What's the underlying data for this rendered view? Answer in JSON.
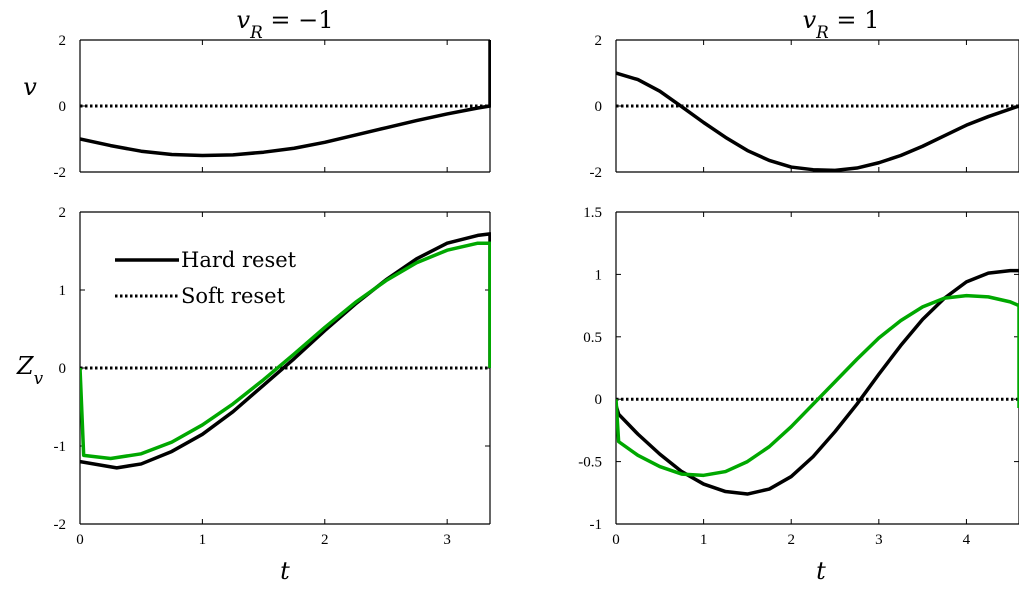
{
  "colors": {
    "hard": "#000000",
    "soft": "#00a800",
    "axis": "#000000"
  },
  "chart_data": [
    {
      "id": "top-left",
      "type": "line",
      "title": "v_R = −1",
      "xlabel": "",
      "ylabel": "v",
      "xlim": [
        0,
        3.35
      ],
      "ylim": [
        -2,
        2
      ],
      "xticks": [
        0,
        1,
        2,
        3
      ],
      "xtick_labels": [
        "",
        "",
        "",
        ""
      ],
      "yticks": [
        -2,
        0,
        2
      ],
      "ytick_labels": [
        "-2",
        "0",
        "2"
      ],
      "series": [
        {
          "style": "solid",
          "color": "#000000",
          "x": [
            0,
            0.25,
            0.5,
            0.75,
            1.0,
            1.25,
            1.5,
            1.75,
            2.0,
            2.25,
            2.5,
            2.75,
            3.0,
            3.25,
            3.35,
            3.35
          ],
          "y": [
            -1.0,
            -1.2,
            -1.37,
            -1.47,
            -1.5,
            -1.48,
            -1.4,
            -1.28,
            -1.1,
            -0.88,
            -0.66,
            -0.44,
            -0.24,
            -0.06,
            0.0,
            2.0
          ]
        },
        {
          "style": "dotted",
          "color": "#000000",
          "x": [
            0,
            3.35
          ],
          "y": [
            0,
            0
          ]
        }
      ]
    },
    {
      "id": "top-right",
      "type": "line",
      "title": "v_R = 1",
      "xlabel": "",
      "ylabel": "",
      "xlim": [
        0,
        4.6
      ],
      "ylim": [
        -2,
        2
      ],
      "xticks": [
        0,
        1,
        2,
        3,
        4
      ],
      "xtick_labels": [
        "",
        "",
        "",
        "",
        ""
      ],
      "yticks": [
        -2,
        0,
        2
      ],
      "ytick_labels": [
        "-2",
        "0",
        "2"
      ],
      "series": [
        {
          "style": "solid",
          "color": "#000000",
          "x": [
            0,
            0.25,
            0.5,
            0.75,
            1.0,
            1.25,
            1.5,
            1.75,
            2.0,
            2.25,
            2.5,
            2.75,
            3.0,
            3.25,
            3.5,
            3.75,
            4.0,
            4.25,
            4.6
          ],
          "y": [
            1.0,
            0.8,
            0.45,
            -0.02,
            -0.5,
            -0.95,
            -1.35,
            -1.65,
            -1.85,
            -1.93,
            -1.95,
            -1.88,
            -1.72,
            -1.5,
            -1.22,
            -0.9,
            -0.58,
            -0.32,
            0.0
          ]
        },
        {
          "style": "dotted",
          "color": "#000000",
          "x": [
            0,
            4.6
          ],
          "y": [
            0,
            0
          ]
        }
      ]
    },
    {
      "id": "bottom-left",
      "type": "line",
      "title": "",
      "xlabel": "t",
      "ylabel": "Z_v",
      "xlim": [
        0,
        3.35
      ],
      "ylim": [
        -2,
        2
      ],
      "xticks": [
        0,
        1,
        2,
        3
      ],
      "xtick_labels": [
        "0",
        "1",
        "2",
        "3"
      ],
      "yticks": [
        -2,
        -1,
        0,
        1,
        2
      ],
      "ytick_labels": [
        "-2",
        "-1",
        "0",
        "1",
        "2"
      ],
      "legend": {
        "placement": "top-left",
        "entries": [
          "Hard reset",
          "Soft reset"
        ]
      },
      "series": [
        {
          "name": "Hard reset",
          "style": "solid",
          "color": "#000000",
          "x": [
            0,
            0.3,
            0.5,
            0.75,
            1.0,
            1.25,
            1.5,
            1.75,
            2.0,
            2.25,
            2.5,
            2.75,
            3.0,
            3.25,
            3.35,
            3.35
          ],
          "y": [
            -1.2,
            -1.28,
            -1.23,
            -1.07,
            -0.85,
            -0.56,
            -0.22,
            0.12,
            0.48,
            0.82,
            1.13,
            1.4,
            1.6,
            1.7,
            1.72,
            0.0
          ]
        },
        {
          "name": "Soft reset",
          "style": "dotted",
          "color": "#000000",
          "x": [
            0,
            3.35
          ],
          "y": [
            0,
            0
          ]
        },
        {
          "style": "solid",
          "color": "#00a800",
          "x": [
            0,
            0.03,
            0.25,
            0.5,
            0.75,
            1.0,
            1.25,
            1.5,
            1.75,
            2.0,
            2.25,
            2.5,
            2.75,
            3.0,
            3.25,
            3.35,
            3.35
          ],
          "y": [
            0.0,
            -1.12,
            -1.16,
            -1.1,
            -0.95,
            -0.73,
            -0.46,
            -0.15,
            0.18,
            0.52,
            0.84,
            1.12,
            1.35,
            1.51,
            1.6,
            1.6,
            0.0
          ]
        }
      ]
    },
    {
      "id": "bottom-right",
      "type": "line",
      "title": "",
      "xlabel": "t",
      "ylabel": "",
      "xlim": [
        0,
        4.6
      ],
      "ylim": [
        -1,
        1.5
      ],
      "xticks": [
        0,
        1,
        2,
        3,
        4
      ],
      "xtick_labels": [
        "0",
        "1",
        "2",
        "3",
        "4"
      ],
      "yticks": [
        -1,
        -0.5,
        0,
        0.5,
        1,
        1.5
      ],
      "ytick_labels": [
        "-1",
        "-0.5",
        "0",
        "0.5",
        "1",
        "1.5"
      ],
      "series": [
        {
          "style": "solid",
          "color": "#000000",
          "x": [
            0,
            0.03,
            0.25,
            0.5,
            0.75,
            1.0,
            1.25,
            1.5,
            1.75,
            2.0,
            2.25,
            2.5,
            2.75,
            3.0,
            3.25,
            3.5,
            3.75,
            4.0,
            4.25,
            4.5,
            4.6
          ],
          "y": [
            -0.05,
            -0.12,
            -0.28,
            -0.44,
            -0.58,
            -0.68,
            -0.74,
            -0.76,
            -0.72,
            -0.62,
            -0.46,
            -0.26,
            -0.04,
            0.2,
            0.43,
            0.64,
            0.81,
            0.94,
            1.01,
            1.03,
            1.03
          ]
        },
        {
          "style": "dotted",
          "color": "#000000",
          "x": [
            0,
            4.6
          ],
          "y": [
            0,
            0
          ]
        },
        {
          "style": "solid",
          "color": "#00a800",
          "x": [
            0,
            0.03,
            0.25,
            0.5,
            0.75,
            1.0,
            1.25,
            1.5,
            1.75,
            2.0,
            2.25,
            2.5,
            2.75,
            3.0,
            3.25,
            3.5,
            3.75,
            4.0,
            4.25,
            4.5,
            4.6,
            4.6
          ],
          "y": [
            0.0,
            -0.34,
            -0.45,
            -0.54,
            -0.6,
            -0.61,
            -0.58,
            -0.5,
            -0.38,
            -0.22,
            -0.04,
            0.14,
            0.32,
            0.49,
            0.63,
            0.74,
            0.81,
            0.83,
            0.82,
            0.78,
            0.75,
            -0.07
          ]
        }
      ]
    }
  ]
}
